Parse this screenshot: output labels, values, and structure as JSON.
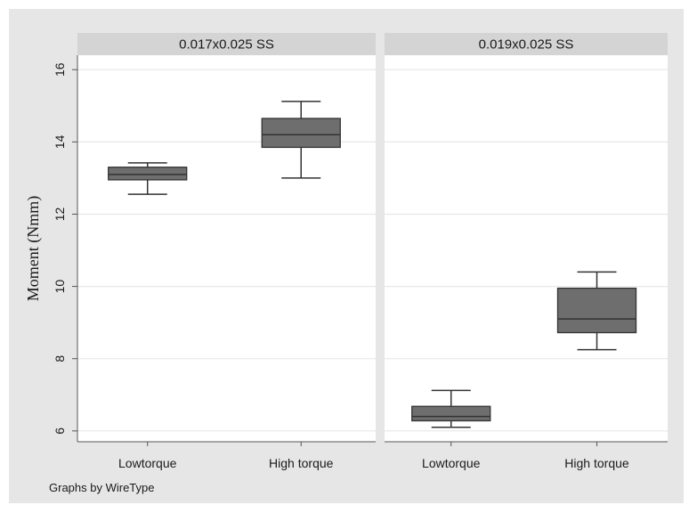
{
  "chart_data": {
    "type": "box",
    "ylabel": "Moment (Nmm)",
    "yticks": [
      6,
      8,
      10,
      12,
      14,
      16
    ],
    "ylim": [
      5.7,
      16.4
    ],
    "grid": true,
    "note": "Graphs by WireType",
    "panels": [
      {
        "title": "0.017x0.025 SS",
        "categories": [
          "Lowtorque",
          "High torque"
        ],
        "boxes": [
          {
            "min": 12.55,
            "q1": 12.95,
            "median": 13.1,
            "q3": 13.3,
            "max": 13.42
          },
          {
            "min": 13.0,
            "q1": 13.85,
            "median": 14.2,
            "q3": 14.65,
            "max": 15.12
          }
        ]
      },
      {
        "title": "0.019x0.025 SS",
        "categories": [
          "Lowtorque",
          "High torque"
        ],
        "boxes": [
          {
            "min": 6.1,
            "q1": 6.28,
            "median": 6.4,
            "q3": 6.68,
            "max": 7.12
          },
          {
            "min": 8.25,
            "q1": 8.72,
            "median": 9.1,
            "q3": 9.95,
            "max": 10.4
          }
        ]
      }
    ],
    "colors": {
      "background": "#e6e6e6",
      "plot": "#ffffff",
      "strip": "#d4d4d4",
      "box": "#6e6e6e",
      "line": "#333333",
      "grid": "#e8e8e8"
    }
  }
}
